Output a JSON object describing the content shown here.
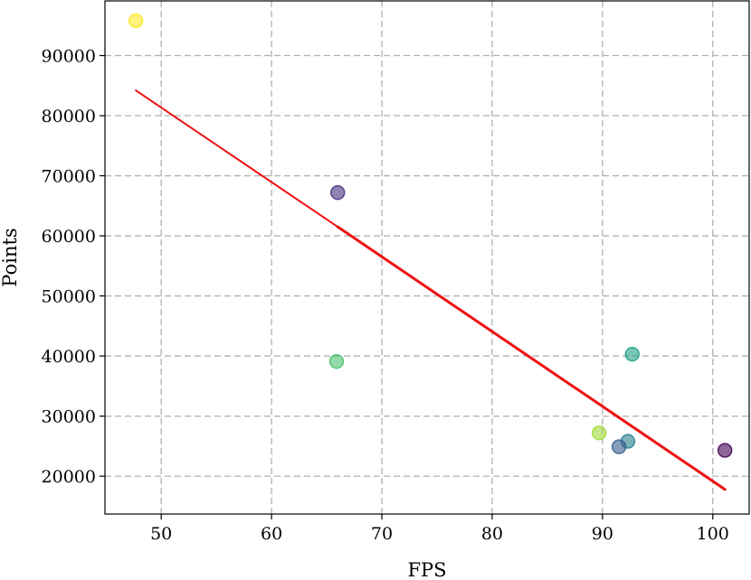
{
  "chart_data": {
    "type": "scatter",
    "title": "",
    "xlabel": "FPS",
    "ylabel": "Points",
    "xlim": [
      44.9,
      103.3
    ],
    "ylim": [
      13700,
      99100
    ],
    "xticks": [
      50,
      60,
      70,
      80,
      90,
      100
    ],
    "yticks": [
      20000,
      30000,
      40000,
      50000,
      60000,
      70000,
      80000,
      90000
    ],
    "grid": true,
    "point_style": "viridis-colored circles, semi-transparent",
    "points": [
      {
        "x": 47.7,
        "y": 95800,
        "color": "#fde725"
      },
      {
        "x": 66.0,
        "y": 67200,
        "color": "#46327e"
      },
      {
        "x": 65.9,
        "y": 39100,
        "color": "#4ac16d"
      },
      {
        "x": 92.7,
        "y": 40300,
        "color": "#1fa187"
      },
      {
        "x": 89.7,
        "y": 27200,
        "color": "#a0da39"
      },
      {
        "x": 92.3,
        "y": 25800,
        "color": "#277f8e"
      },
      {
        "x": 91.5,
        "y": 24900,
        "color": "#365c8d"
      },
      {
        "x": 101.1,
        "y": 24300,
        "color": "#440154"
      }
    ],
    "trendline": {
      "color": "#ee1111",
      "points": [
        [
          47.7,
          84200
        ],
        [
          66.0,
          61500
        ],
        [
          101.1,
          17800
        ]
      ]
    }
  }
}
